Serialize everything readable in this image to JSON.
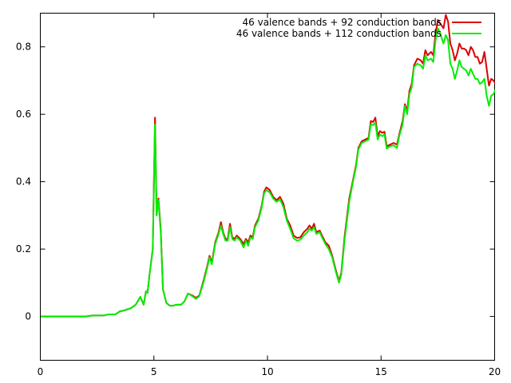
{
  "chart_data": {
    "type": "line",
    "title": "",
    "xlabel": "",
    "ylabel": "",
    "xlim": [
      0,
      20
    ],
    "ylim": [
      -0.13,
      0.9
    ],
    "xticks": [
      0,
      5,
      10,
      15,
      20
    ],
    "yticks": [
      0,
      0.2,
      0.4,
      0.6,
      0.8
    ],
    "xtick_labels": [
      "0",
      "5",
      "10",
      "15",
      "20"
    ],
    "ytick_labels": [
      "0",
      "0.2",
      "0.4",
      "0.6",
      "0.8"
    ],
    "grid": false,
    "legend_position": "top-right",
    "series": [
      {
        "name": "46 valence bands + 92 conduction bands",
        "color": "#dd0000",
        "points": [
          [
            0,
            0
          ],
          [
            1.0,
            0
          ],
          [
            2.0,
            0
          ],
          [
            2.3,
            0.003
          ],
          [
            2.8,
            0.003
          ],
          [
            3.0,
            0.006
          ],
          [
            3.3,
            0.006
          ],
          [
            3.5,
            0.015
          ],
          [
            3.7,
            0.018
          ],
          [
            4.0,
            0.025
          ],
          [
            4.2,
            0.035
          ],
          [
            4.4,
            0.058
          ],
          [
            4.55,
            0.035
          ],
          [
            4.65,
            0.075
          ],
          [
            4.72,
            0.07
          ],
          [
            4.8,
            0.12
          ],
          [
            4.95,
            0.2
          ],
          [
            5.05,
            0.59
          ],
          [
            5.12,
            0.3
          ],
          [
            5.2,
            0.35
          ],
          [
            5.3,
            0.26
          ],
          [
            5.4,
            0.08
          ],
          [
            5.55,
            0.04
          ],
          [
            5.7,
            0.032
          ],
          [
            5.85,
            0.032
          ],
          [
            6.0,
            0.035
          ],
          [
            6.2,
            0.035
          ],
          [
            6.35,
            0.045
          ],
          [
            6.5,
            0.068
          ],
          [
            6.7,
            0.062
          ],
          [
            6.85,
            0.055
          ],
          [
            7.0,
            0.062
          ],
          [
            7.2,
            0.11
          ],
          [
            7.35,
            0.15
          ],
          [
            7.45,
            0.18
          ],
          [
            7.55,
            0.16
          ],
          [
            7.7,
            0.22
          ],
          [
            7.85,
            0.25
          ],
          [
            7.95,
            0.28
          ],
          [
            8.05,
            0.25
          ],
          [
            8.15,
            0.23
          ],
          [
            8.25,
            0.23
          ],
          [
            8.35,
            0.275
          ],
          [
            8.45,
            0.235
          ],
          [
            8.55,
            0.23
          ],
          [
            8.65,
            0.24
          ],
          [
            8.8,
            0.23
          ],
          [
            8.95,
            0.215
          ],
          [
            9.05,
            0.23
          ],
          [
            9.15,
            0.22
          ],
          [
            9.25,
            0.24
          ],
          [
            9.35,
            0.235
          ],
          [
            9.45,
            0.27
          ],
          [
            9.6,
            0.29
          ],
          [
            9.75,
            0.33
          ],
          [
            9.85,
            0.37
          ],
          [
            9.95,
            0.383
          ],
          [
            10.1,
            0.375
          ],
          [
            10.25,
            0.355
          ],
          [
            10.4,
            0.345
          ],
          [
            10.55,
            0.355
          ],
          [
            10.7,
            0.335
          ],
          [
            10.85,
            0.29
          ],
          [
            11.0,
            0.27
          ],
          [
            11.15,
            0.24
          ],
          [
            11.3,
            0.233
          ],
          [
            11.45,
            0.235
          ],
          [
            11.6,
            0.25
          ],
          [
            11.75,
            0.26
          ],
          [
            11.85,
            0.27
          ],
          [
            11.95,
            0.26
          ],
          [
            12.05,
            0.275
          ],
          [
            12.15,
            0.25
          ],
          [
            12.3,
            0.255
          ],
          [
            12.4,
            0.24
          ],
          [
            12.55,
            0.22
          ],
          [
            12.7,
            0.21
          ],
          [
            12.85,
            0.18
          ],
          [
            13.0,
            0.14
          ],
          [
            13.15,
            0.105
          ],
          [
            13.25,
            0.13
          ],
          [
            13.4,
            0.24
          ],
          [
            13.6,
            0.35
          ],
          [
            13.75,
            0.4
          ],
          [
            13.9,
            0.45
          ],
          [
            14.0,
            0.5
          ],
          [
            14.15,
            0.52
          ],
          [
            14.3,
            0.525
          ],
          [
            14.45,
            0.53
          ],
          [
            14.55,
            0.58
          ],
          [
            14.65,
            0.577
          ],
          [
            14.75,
            0.59
          ],
          [
            14.85,
            0.535
          ],
          [
            14.95,
            0.55
          ],
          [
            15.05,
            0.545
          ],
          [
            15.15,
            0.548
          ],
          [
            15.25,
            0.505
          ],
          [
            15.4,
            0.51
          ],
          [
            15.55,
            0.515
          ],
          [
            15.7,
            0.51
          ],
          [
            15.8,
            0.54
          ],
          [
            15.95,
            0.58
          ],
          [
            16.05,
            0.63
          ],
          [
            16.15,
            0.61
          ],
          [
            16.25,
            0.67
          ],
          [
            16.35,
            0.69
          ],
          [
            16.45,
            0.745
          ],
          [
            16.6,
            0.765
          ],
          [
            16.75,
            0.76
          ],
          [
            16.85,
            0.75
          ],
          [
            16.95,
            0.79
          ],
          [
            17.05,
            0.775
          ],
          [
            17.2,
            0.785
          ],
          [
            17.3,
            0.775
          ],
          [
            17.4,
            0.84
          ],
          [
            17.5,
            0.88
          ],
          [
            17.6,
            0.87
          ],
          [
            17.75,
            0.855
          ],
          [
            17.85,
            0.895
          ],
          [
            17.95,
            0.875
          ],
          [
            18.05,
            0.81
          ],
          [
            18.15,
            0.79
          ],
          [
            18.25,
            0.76
          ],
          [
            18.35,
            0.78
          ],
          [
            18.45,
            0.81
          ],
          [
            18.55,
            0.795
          ],
          [
            18.65,
            0.795
          ],
          [
            18.75,
            0.79
          ],
          [
            18.85,
            0.775
          ],
          [
            18.95,
            0.8
          ],
          [
            19.05,
            0.79
          ],
          [
            19.15,
            0.77
          ],
          [
            19.25,
            0.77
          ],
          [
            19.35,
            0.75
          ],
          [
            19.45,
            0.755
          ],
          [
            19.55,
            0.785
          ],
          [
            19.65,
            0.735
          ],
          [
            19.75,
            0.685
          ],
          [
            19.85,
            0.705
          ],
          [
            19.95,
            0.7
          ],
          [
            20.05,
            0.69
          ],
          [
            20.15,
            0.76
          ],
          [
            20.3,
            0.88
          ]
        ]
      },
      {
        "name": "46 valence bands + 112 conduction bands",
        "color": "#00ee00",
        "points": [
          [
            0,
            0
          ],
          [
            1.0,
            0
          ],
          [
            2.0,
            0
          ],
          [
            2.3,
            0.003
          ],
          [
            2.8,
            0.003
          ],
          [
            3.0,
            0.006
          ],
          [
            3.3,
            0.006
          ],
          [
            3.5,
            0.015
          ],
          [
            3.7,
            0.018
          ],
          [
            4.0,
            0.025
          ],
          [
            4.2,
            0.035
          ],
          [
            4.4,
            0.058
          ],
          [
            4.55,
            0.035
          ],
          [
            4.65,
            0.075
          ],
          [
            4.72,
            0.07
          ],
          [
            4.8,
            0.12
          ],
          [
            4.95,
            0.2
          ],
          [
            5.05,
            0.57
          ],
          [
            5.12,
            0.3
          ],
          [
            5.2,
            0.345
          ],
          [
            5.3,
            0.25
          ],
          [
            5.4,
            0.08
          ],
          [
            5.55,
            0.04
          ],
          [
            5.7,
            0.032
          ],
          [
            5.85,
            0.032
          ],
          [
            6.0,
            0.035
          ],
          [
            6.2,
            0.035
          ],
          [
            6.35,
            0.045
          ],
          [
            6.5,
            0.068
          ],
          [
            6.7,
            0.06
          ],
          [
            6.85,
            0.052
          ],
          [
            7.0,
            0.06
          ],
          [
            7.2,
            0.105
          ],
          [
            7.35,
            0.145
          ],
          [
            7.45,
            0.175
          ],
          [
            7.55,
            0.155
          ],
          [
            7.7,
            0.215
          ],
          [
            7.85,
            0.245
          ],
          [
            7.95,
            0.27
          ],
          [
            8.05,
            0.245
          ],
          [
            8.15,
            0.225
          ],
          [
            8.25,
            0.225
          ],
          [
            8.35,
            0.265
          ],
          [
            8.45,
            0.23
          ],
          [
            8.55,
            0.225
          ],
          [
            8.65,
            0.235
          ],
          [
            8.8,
            0.225
          ],
          [
            8.95,
            0.205
          ],
          [
            9.05,
            0.225
          ],
          [
            9.15,
            0.21
          ],
          [
            9.25,
            0.235
          ],
          [
            9.35,
            0.23
          ],
          [
            9.45,
            0.265
          ],
          [
            9.6,
            0.285
          ],
          [
            9.75,
            0.325
          ],
          [
            9.85,
            0.365
          ],
          [
            9.95,
            0.375
          ],
          [
            10.1,
            0.368
          ],
          [
            10.25,
            0.35
          ],
          [
            10.4,
            0.34
          ],
          [
            10.55,
            0.348
          ],
          [
            10.7,
            0.325
          ],
          [
            10.85,
            0.285
          ],
          [
            11.0,
            0.26
          ],
          [
            11.15,
            0.232
          ],
          [
            11.3,
            0.225
          ],
          [
            11.45,
            0.228
          ],
          [
            11.6,
            0.24
          ],
          [
            11.75,
            0.25
          ],
          [
            11.85,
            0.26
          ],
          [
            11.95,
            0.255
          ],
          [
            12.05,
            0.265
          ],
          [
            12.15,
            0.245
          ],
          [
            12.3,
            0.25
          ],
          [
            12.4,
            0.235
          ],
          [
            12.55,
            0.215
          ],
          [
            12.7,
            0.2
          ],
          [
            12.85,
            0.175
          ],
          [
            13.0,
            0.135
          ],
          [
            13.15,
            0.1
          ],
          [
            13.25,
            0.125
          ],
          [
            13.4,
            0.23
          ],
          [
            13.6,
            0.34
          ],
          [
            13.75,
            0.395
          ],
          [
            13.9,
            0.445
          ],
          [
            14.0,
            0.495
          ],
          [
            14.15,
            0.515
          ],
          [
            14.3,
            0.52
          ],
          [
            14.45,
            0.525
          ],
          [
            14.55,
            0.57
          ],
          [
            14.65,
            0.568
          ],
          [
            14.75,
            0.575
          ],
          [
            14.85,
            0.525
          ],
          [
            14.95,
            0.54
          ],
          [
            15.05,
            0.535
          ],
          [
            15.15,
            0.54
          ],
          [
            15.25,
            0.498
          ],
          [
            15.4,
            0.505
          ],
          [
            15.55,
            0.508
          ],
          [
            15.7,
            0.5
          ],
          [
            15.8,
            0.535
          ],
          [
            15.95,
            0.57
          ],
          [
            16.05,
            0.625
          ],
          [
            16.15,
            0.6
          ],
          [
            16.25,
            0.66
          ],
          [
            16.35,
            0.68
          ],
          [
            16.45,
            0.74
          ],
          [
            16.6,
            0.75
          ],
          [
            16.75,
            0.745
          ],
          [
            16.85,
            0.735
          ],
          [
            16.95,
            0.775
          ],
          [
            17.05,
            0.76
          ],
          [
            17.2,
            0.765
          ],
          [
            17.3,
            0.755
          ],
          [
            17.4,
            0.82
          ],
          [
            17.5,
            0.855
          ],
          [
            17.6,
            0.84
          ],
          [
            17.75,
            0.81
          ],
          [
            17.85,
            0.835
          ],
          [
            17.95,
            0.82
          ],
          [
            18.05,
            0.75
          ],
          [
            18.15,
            0.735
          ],
          [
            18.25,
            0.705
          ],
          [
            18.35,
            0.73
          ],
          [
            18.45,
            0.76
          ],
          [
            18.55,
            0.74
          ],
          [
            18.65,
            0.735
          ],
          [
            18.75,
            0.73
          ],
          [
            18.85,
            0.715
          ],
          [
            18.95,
            0.735
          ],
          [
            19.05,
            0.72
          ],
          [
            19.15,
            0.705
          ],
          [
            19.25,
            0.705
          ],
          [
            19.35,
            0.69
          ],
          [
            19.45,
            0.695
          ],
          [
            19.55,
            0.705
          ],
          [
            19.65,
            0.655
          ],
          [
            19.75,
            0.625
          ],
          [
            19.85,
            0.655
          ],
          [
            19.95,
            0.66
          ],
          [
            20.05,
            0.675
          ],
          [
            20.15,
            0.75
          ],
          [
            20.3,
            0.86
          ]
        ]
      }
    ]
  }
}
